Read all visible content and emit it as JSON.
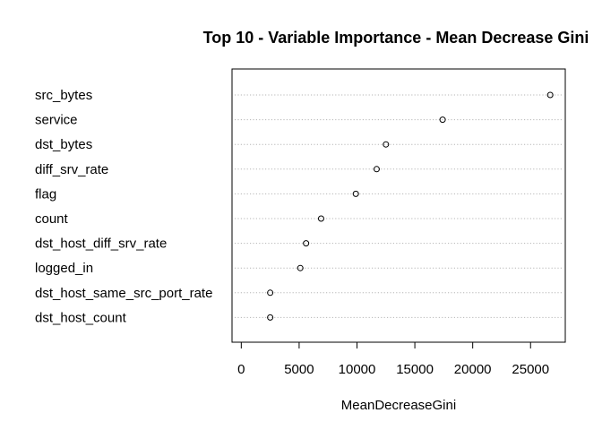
{
  "chart_data": {
    "type": "scatter",
    "subtype": "dotchart",
    "title": "Top 10 - Variable Importance - Mean Decrease Gini",
    "xlabel": "MeanDecreaseGini",
    "ylabel": "",
    "xlim": [
      -800,
      28000
    ],
    "grid": true,
    "grid_style": "dotted horizontal lines",
    "marker": "open-circle",
    "xticks": [
      0,
      5000,
      10000,
      15000,
      20000,
      25000
    ],
    "categories": [
      "src_bytes",
      "service",
      "dst_bytes",
      "diff_srv_rate",
      "flag",
      "count",
      "dst_host_diff_srv_rate",
      "logged_in",
      "dst_host_same_src_port_rate",
      "dst_host_count"
    ],
    "values": [
      26700,
      17400,
      12500,
      11700,
      9900,
      6900,
      5600,
      5100,
      2500,
      2500
    ]
  }
}
